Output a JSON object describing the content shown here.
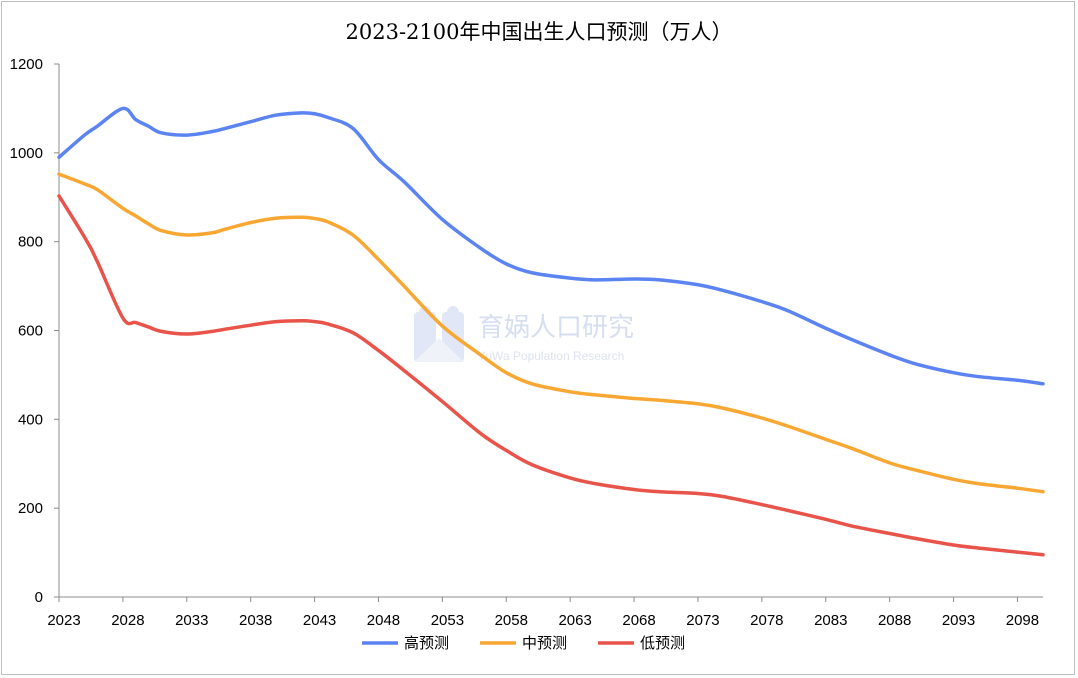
{
  "chart_data": {
    "type": "line",
    "title": "2023-2100年中国出生人口预测（万人）",
    "xlabel": "",
    "ylabel": "",
    "ylim": [
      0,
      1200
    ],
    "yticks": [
      0,
      200,
      400,
      600,
      800,
      1000,
      1200
    ],
    "xticks": [
      2023,
      2028,
      2033,
      2038,
      2043,
      2048,
      2053,
      2058,
      2063,
      2068,
      2073,
      2078,
      2083,
      2088,
      2093,
      2098
    ],
    "grid": false,
    "legend_position": "bottom",
    "x": [
      2023,
      2025,
      2026,
      2028,
      2029,
      2030,
      2031,
      2033,
      2035,
      2036,
      2038,
      2040,
      2042,
      2043,
      2044,
      2046,
      2048,
      2050,
      2053,
      2056,
      2058,
      2060,
      2063,
      2065,
      2068,
      2070,
      2073,
      2075,
      2078,
      2080,
      2083,
      2085,
      2088,
      2090,
      2093,
      2095,
      2098,
      2100
    ],
    "series": [
      {
        "name": "高预测",
        "color": "#5b84f2",
        "values": [
          990,
          1040,
          1060,
          1100,
          1075,
          1060,
          1045,
          1040,
          1048,
          1055,
          1070,
          1085,
          1090,
          1088,
          1080,
          1055,
          985,
          935,
          850,
          785,
          750,
          730,
          718,
          714,
          716,
          714,
          703,
          690,
          665,
          645,
          605,
          580,
          545,
          525,
          505,
          496,
          488,
          480
        ]
      },
      {
        "name": "中预测",
        "color": "#f8a733",
        "values": [
          952,
          930,
          917,
          875,
          858,
          840,
          825,
          815,
          820,
          828,
          843,
          853,
          855,
          852,
          845,
          815,
          760,
          700,
          610,
          545,
          505,
          480,
          462,
          455,
          447,
          443,
          435,
          425,
          403,
          385,
          355,
          335,
          302,
          286,
          265,
          255,
          245,
          237
        ]
      },
      {
        "name": "低预测",
        "color": "#e8534a",
        "values": [
          903,
          810,
          755,
          628,
          618,
          608,
          598,
          592,
          598,
          603,
          612,
          620,
          622,
          620,
          615,
          595,
          555,
          510,
          440,
          368,
          330,
          298,
          268,
          255,
          242,
          237,
          233,
          226,
          208,
          195,
          175,
          160,
          143,
          132,
          117,
          110,
          101,
          95
        ]
      }
    ]
  },
  "watermark": {
    "title": "育娲人口研究",
    "subtitle": "YuWa Population Research"
  }
}
